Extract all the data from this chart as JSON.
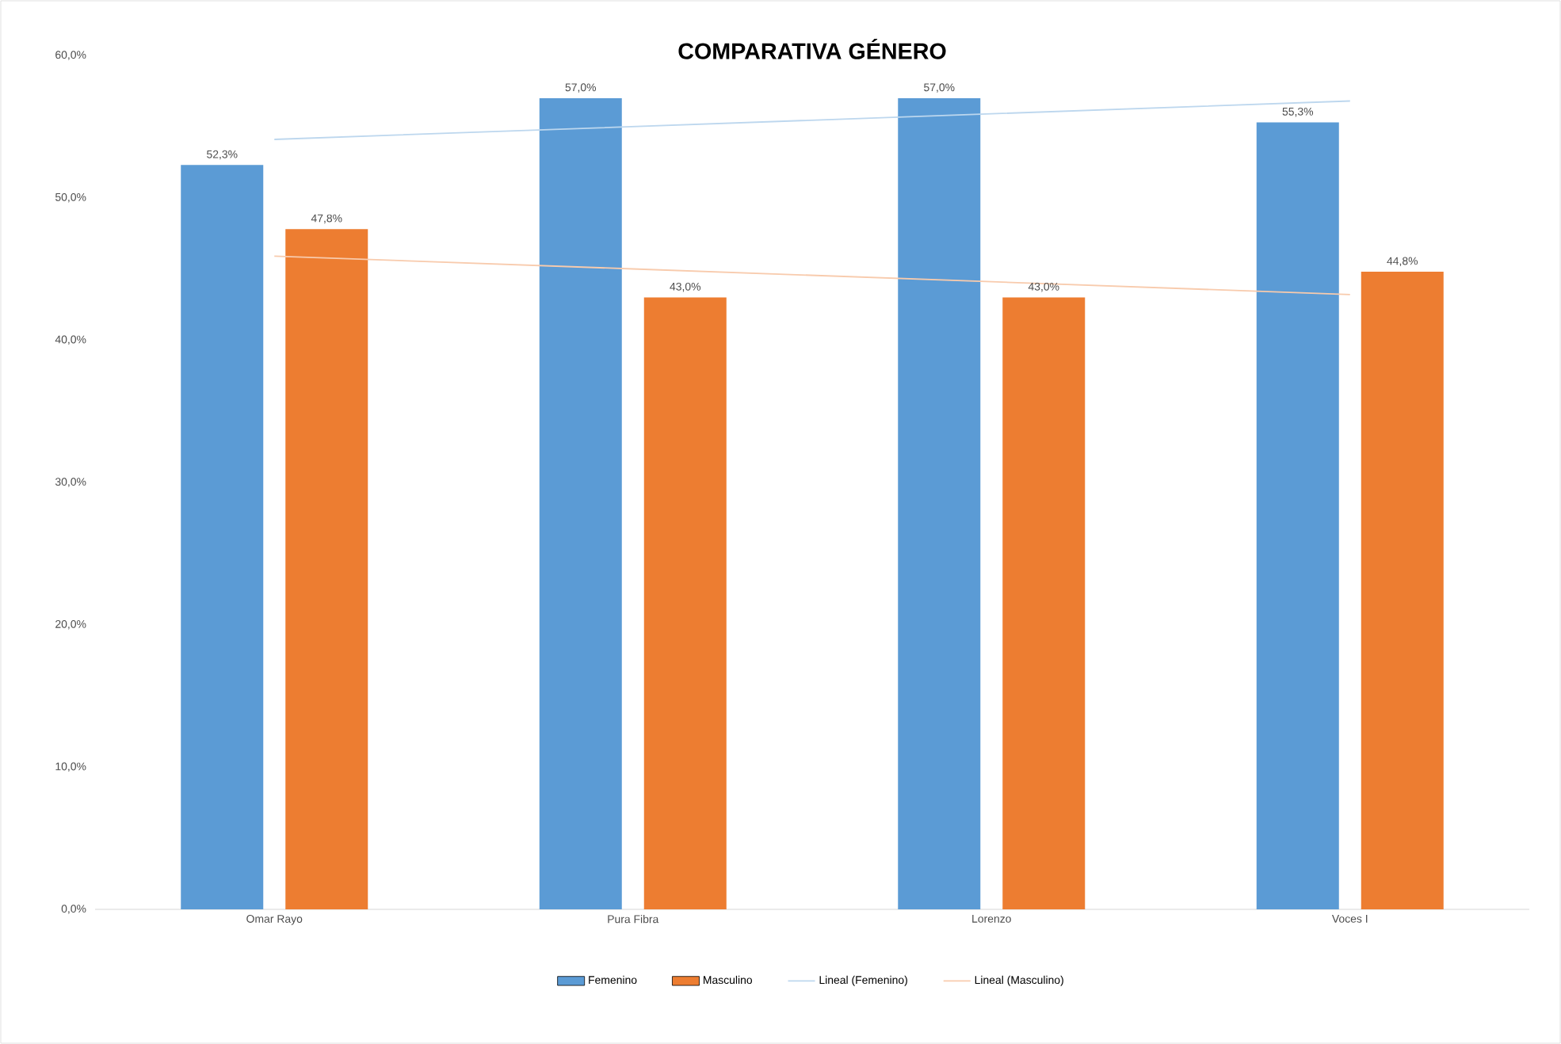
{
  "chart_data": {
    "type": "bar",
    "title": "COMPARATIVA GÉNERO",
    "categories": [
      "Omar Rayo",
      "Pura Fibra",
      "Lorenzo",
      "Voces I"
    ],
    "series": [
      {
        "name": "Femenino",
        "color": "#5b9bd5",
        "values": [
          52.3,
          57.0,
          57.0,
          55.3
        ],
        "value_labels": [
          "52,3%",
          "57,0%",
          "57,0%",
          "55,3%"
        ]
      },
      {
        "name": "Masculino",
        "color": "#ed7d31",
        "values": [
          47.8,
          43.0,
          43.0,
          44.8
        ],
        "value_labels": [
          "47,8%",
          "43,0%",
          "43,0%",
          "44,8%"
        ]
      },
      {
        "name": "Lineal (Femenino)",
        "type": "line",
        "color": "#bdd7ee",
        "values": [
          54.1,
          55.0,
          55.9,
          56.8
        ]
      },
      {
        "name": "Lineal (Masculino)",
        "type": "line",
        "color": "#f8cbad",
        "values": [
          45.9,
          45.0,
          44.1,
          43.2
        ]
      }
    ],
    "ylim": [
      0,
      60
    ],
    "yticks": [
      {
        "value": 0,
        "label": "0,0%"
      },
      {
        "value": 10,
        "label": "10,0%"
      },
      {
        "value": 20,
        "label": "20,0%"
      },
      {
        "value": 30,
        "label": "30,0%"
      },
      {
        "value": 40,
        "label": "40,0%"
      },
      {
        "value": 50,
        "label": "50,0%"
      },
      {
        "value": 60,
        "label": "60,0%"
      }
    ],
    "legend": "bottom"
  }
}
